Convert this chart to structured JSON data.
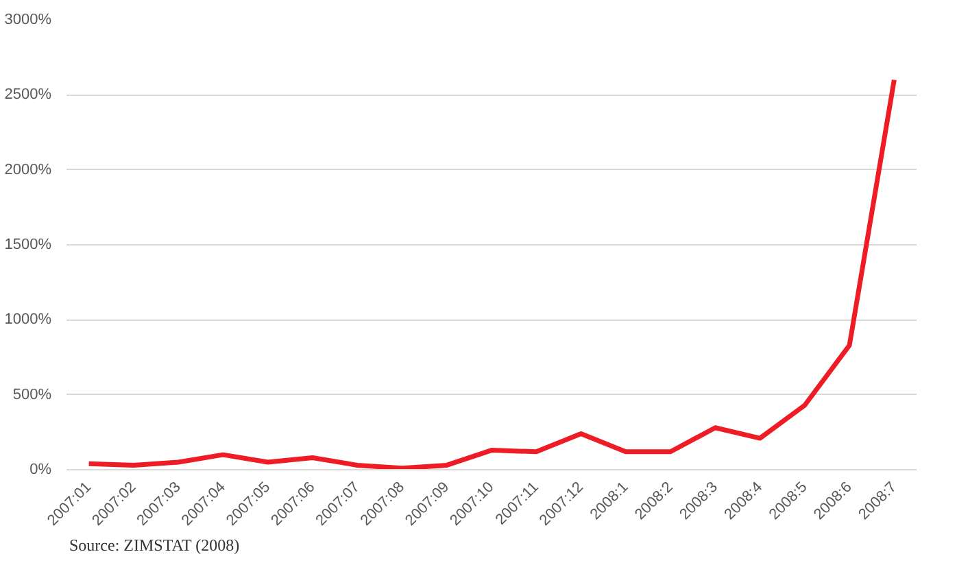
{
  "chart_data": {
    "type": "line",
    "categories": [
      "2007:01",
      "2007:02",
      "2007:03",
      "2007:04",
      "2007:05",
      "2007:06",
      "2007:07",
      "2007:08",
      "2007:09",
      "2007:10",
      "2007:11",
      "2007:12",
      "2008:1",
      "2008:2",
      "2008:3",
      "2008:4",
      "2008:5",
      "2008:6",
      "2008:7"
    ],
    "series": [
      {
        "color": "#ee1c25",
        "values": [
          40,
          30,
          50,
          100,
          50,
          80,
          30,
          10,
          30,
          130,
          120,
          240,
          120,
          120,
          280,
          210,
          430,
          830,
          2600
        ]
      }
    ],
    "ylim": [
      0,
      3000
    ],
    "yticks": [
      {
        "value": 0,
        "label": "0%"
      },
      {
        "value": 500,
        "label": "500%"
      },
      {
        "value": 1000,
        "label": "1000%"
      },
      {
        "value": 1500,
        "label": "1500%"
      },
      {
        "value": 2000,
        "label": "2000%"
      },
      {
        "value": 2500,
        "label": "2500%"
      },
      {
        "value": 3000,
        "label": "3000%"
      }
    ],
    "grid": "y",
    "marker": "none",
    "line_style": "solid",
    "annotations": [
      "Source: ZIMSTAT (2008)"
    ]
  }
}
